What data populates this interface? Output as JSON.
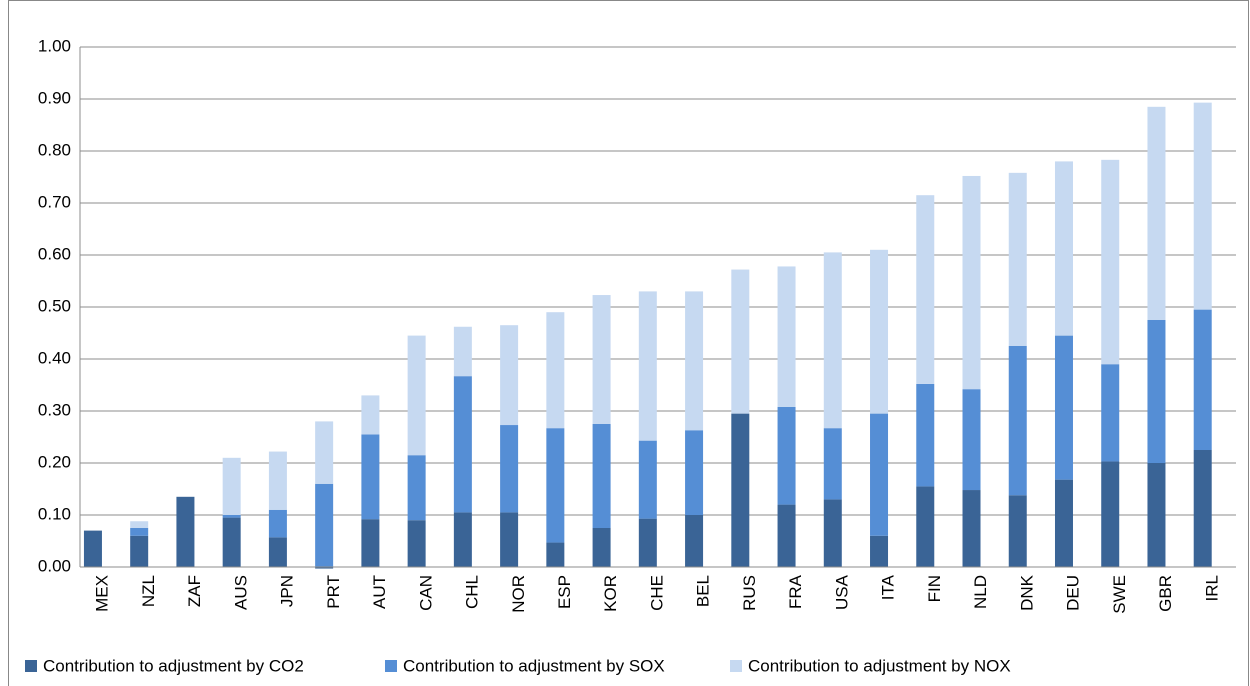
{
  "chart_data": {
    "type": "stacked_bar",
    "categories": [
      "MEX",
      "NZL",
      "ZAF",
      "AUS",
      "JPN",
      "PRT",
      "AUT",
      "CAN",
      "CHL",
      "NOR",
      "ESP",
      "KOR",
      "CHE",
      "BEL",
      "RUS",
      "FRA",
      "USA",
      "ITA",
      "FIN",
      "NLD",
      "DNK",
      "DEU",
      "SWE",
      "GBR",
      "IRL"
    ],
    "series": [
      {
        "name": "Contribution to adjustment by CO2",
        "color": "#3a6496",
        "values": [
          0.07,
          0.06,
          0.135,
          0.095,
          0.057,
          -0.003,
          0.092,
          0.09,
          0.105,
          0.105,
          0.047,
          0.075,
          0.093,
          0.1,
          0.295,
          0.12,
          0.13,
          0.06,
          0.155,
          0.148,
          0.138,
          0.168,
          0.203,
          0.2,
          0.225
        ]
      },
      {
        "name": "Contribution to adjustment by SOX",
        "color": "#558ed5",
        "values": [
          0,
          0.015,
          0,
          0.005,
          0.053,
          0.16,
          0.163,
          0.125,
          0.262,
          0.168,
          0.22,
          0.2,
          0.15,
          0.163,
          0,
          0.188,
          0.137,
          0.235,
          0.197,
          0.194,
          0.287,
          0.277,
          0.187,
          0.275,
          0.27
        ]
      },
      {
        "name": "Contribution to adjustment by NOX",
        "color": "#c6d9f1",
        "values": [
          0,
          0.013,
          0,
          0.11,
          0.112,
          0.12,
          0.075,
          0.23,
          0.095,
          0.192,
          0.223,
          0.248,
          0.287,
          0.267,
          0.277,
          0.27,
          0.338,
          0.315,
          0.363,
          0.41,
          0.333,
          0.335,
          0.393,
          0.41,
          0.398
        ]
      }
    ],
    "ylim": [
      0,
      1
    ],
    "yticks": [
      {
        "value": 0,
        "label": "0.00"
      },
      {
        "value": 0.1,
        "label": "0.10"
      },
      {
        "value": 0.2,
        "label": "0.20"
      },
      {
        "value": 0.3,
        "label": "0.30"
      },
      {
        "value": 0.4,
        "label": "0.40"
      },
      {
        "value": 0.5,
        "label": "0.50"
      },
      {
        "value": 0.6,
        "label": "0.60"
      },
      {
        "value": 0.7,
        "label": "0.70"
      },
      {
        "value": 0.8,
        "label": "0.80"
      },
      {
        "value": 0.9,
        "label": "0.90"
      },
      {
        "value": 1,
        "label": "1.00"
      }
    ],
    "grid": true,
    "legend": "bottom"
  }
}
